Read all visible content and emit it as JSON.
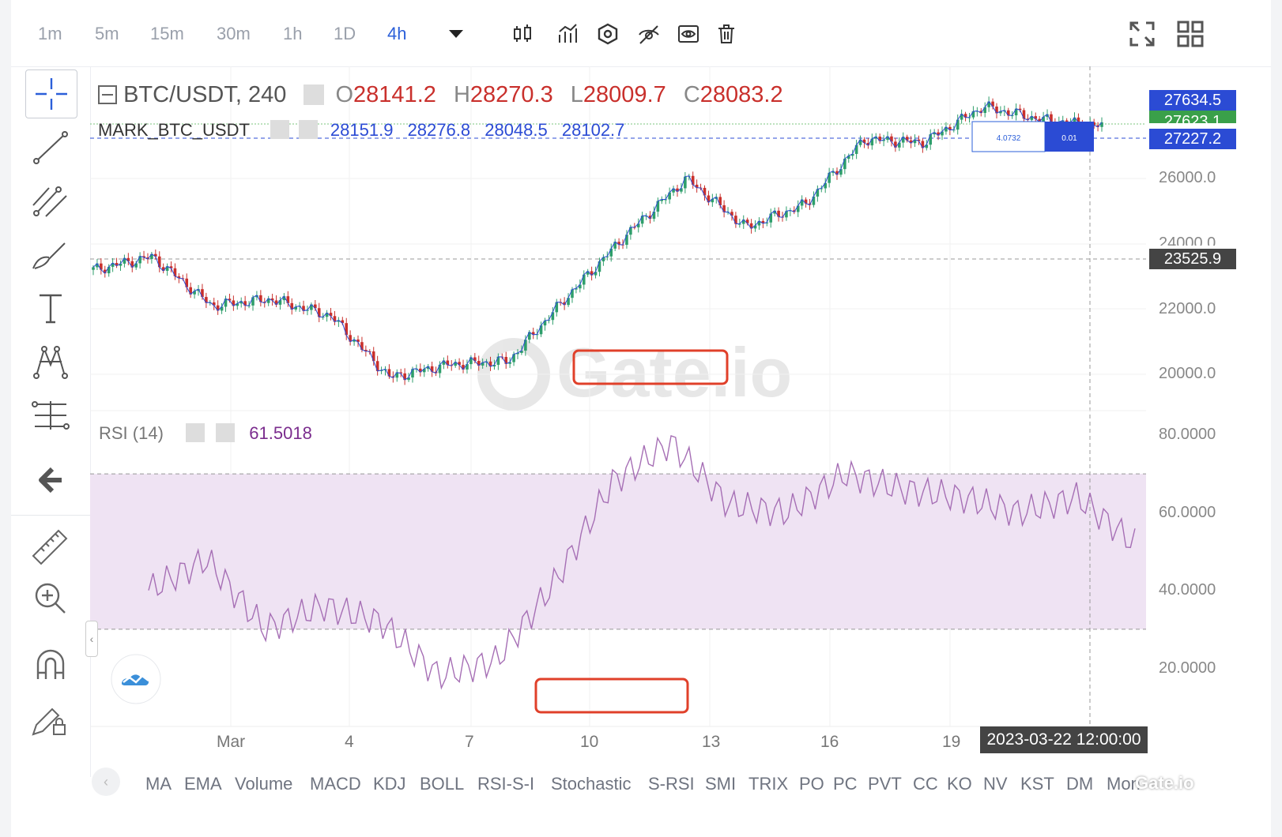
{
  "timeframes": [
    "1m",
    "5m",
    "15m",
    "30m",
    "1h",
    "1D",
    "4h"
  ],
  "active_timeframe": "4h",
  "legend": {
    "symbol": "BTC/USDT, 240",
    "o_label": "O",
    "o": "28141.2",
    "h_label": "H",
    "h": "28270.3",
    "l_label": "L",
    "l": "28009.7",
    "c_label": "C",
    "c": "28083.2"
  },
  "mark": {
    "name": "MARK_BTC_USDT",
    "v1": "28151.9",
    "v2": "28276.8",
    "v3": "28048.5",
    "v4": "28102.7"
  },
  "rsi": {
    "name": "RSI (14)",
    "value": "61.5018"
  },
  "order_box": {
    "qty": "4.0732",
    "size": "0.01"
  },
  "price_labels": {
    "last": "27634.5",
    "mark": "27623.1",
    "line": "27227.2",
    "cross": "23525.9"
  },
  "y_ticks": [
    "26000.0",
    "24000.0",
    "22000.0",
    "20000.0"
  ],
  "rsi_ticks": [
    "80.0000",
    "60.0000",
    "40.0000",
    "20.0000"
  ],
  "x_ticks": [
    "Mar",
    "4",
    "7",
    "10",
    "13",
    "16",
    "19"
  ],
  "crosshair_time": "2023-03-22 12:00:00",
  "indicators": [
    "MA",
    "EMA",
    "Volume",
    "MACD",
    "KDJ",
    "BOLL",
    "RSI-S-I",
    "Stochastic",
    "S-RSI",
    "SMI",
    "TRIX",
    "PO",
    "PC",
    "PVT",
    "CC",
    "KO",
    "NV",
    "KST",
    "DM",
    "Mon"
  ],
  "watermark": "Gate.io",
  "colors": {
    "up": "#2e9e6b",
    "down": "#c9302c",
    "rsi": "#a66fb5",
    "band": "#efe3f3",
    "accent": "#2b5fd9"
  },
  "chart_data": [
    {
      "type": "line",
      "series": [
        {
          "name": "BTC/USDT, 240",
          "x": [
            "Mar 1",
            "Mar 3",
            "Mar 4",
            "Mar 7",
            "Mar 9",
            "Mar 10",
            "Mar 11",
            "Mar 12",
            "Mar 13",
            "Mar 14",
            "Mar 15",
            "Mar 16",
            "Mar 17",
            "Mar 18",
            "Mar 19",
            "Mar 20",
            "Mar 21",
            "Mar 22"
          ],
          "values": [
            23200,
            23600,
            22100,
            22300,
            21800,
            19900,
            20300,
            20400,
            22400,
            24300,
            26000,
            24500,
            25200,
            27200,
            27100,
            28200,
            27800,
            27600
          ]
        }
      ],
      "ylim": [
        19500,
        28500
      ]
    },
    {
      "type": "line",
      "series": [
        {
          "name": "RSI (14)",
          "x": [
            "Mar 1",
            "Mar 3",
            "Mar 4",
            "Mar 7",
            "Mar 9",
            "Mar 10",
            "Mar 11",
            "Mar 12",
            "Mar 13",
            "Mar 14",
            "Mar 15",
            "Mar 16",
            "Mar 17",
            "Mar 18",
            "Mar 19",
            "Mar 20",
            "Mar 21",
            "Mar 22"
          ],
          "values": [
            40,
            48,
            30,
            36,
            32,
            18,
            22,
            42,
            68,
            78,
            62,
            60,
            70,
            66,
            64,
            60,
            64,
            52
          ]
        }
      ],
      "ylim": [
        10,
        85
      ],
      "bands": [
        30,
        70
      ]
    }
  ]
}
